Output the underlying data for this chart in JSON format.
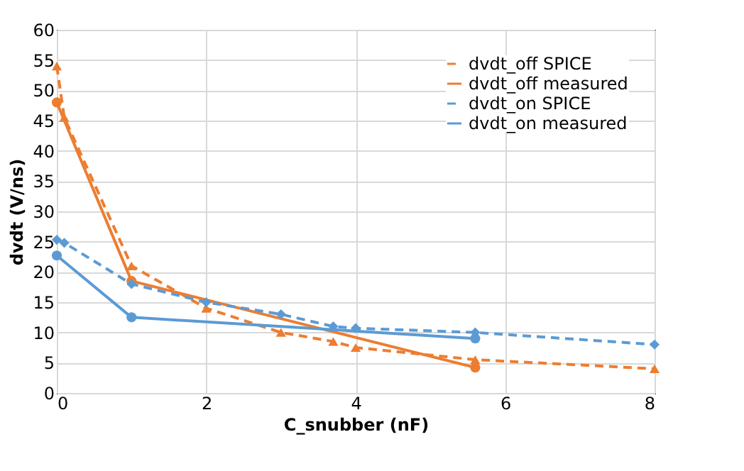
{
  "chart_data": {
    "type": "line",
    "xlabel": "C_snubber (nF)",
    "ylabel": "dvdt (V/ns)",
    "xlim": [
      0,
      8
    ],
    "xticks": [
      0,
      2,
      4,
      6,
      8
    ],
    "ylim": [
      0,
      60
    ],
    "yticks": [
      0,
      5,
      10,
      15,
      20,
      25,
      30,
      35,
      40,
      45,
      50,
      55,
      60
    ],
    "grid": true,
    "legend": "top right",
    "series": [
      {
        "name": "dvdt_off SPICE",
        "color": "#ed7d31",
        "line_style": "dashed",
        "marker": "triangle",
        "x": [
          0,
          0.1,
          1,
          2,
          3,
          3.7,
          4,
          5.6,
          8
        ],
        "values": [
          54,
          45.5,
          21,
          14,
          10,
          8.5,
          7.5,
          5.5,
          4
        ]
      },
      {
        "name": "dvdt_off measured",
        "color": "#ed7d31",
        "line_style": "solid",
        "marker": "circle",
        "x": [
          0,
          1,
          5.6
        ],
        "values": [
          48,
          18.5,
          4.2
        ]
      },
      {
        "name": "dvdt_on SPICE",
        "color": "#5b9bd5",
        "line_style": "dashed",
        "marker": "diamond",
        "x": [
          0,
          0.1,
          1,
          2,
          3,
          3.7,
          4,
          5.6,
          8
        ],
        "values": [
          25.3,
          24.8,
          18,
          15,
          13,
          11,
          10.7,
          10,
          8
        ]
      },
      {
        "name": "dvdt_on measured",
        "color": "#5b9bd5",
        "line_style": "solid",
        "marker": "circle",
        "x": [
          0,
          1,
          5.6
        ],
        "values": [
          22.7,
          12.5,
          9
        ]
      }
    ]
  }
}
